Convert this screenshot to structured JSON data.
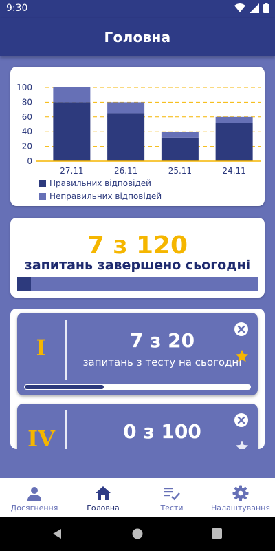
{
  "status_bar": {
    "time": "9:30"
  },
  "app_bar": {
    "title": "Головна"
  },
  "chart_data": {
    "type": "bar",
    "stacked": true,
    "categories": [
      "27.11",
      "26.11",
      "25.11",
      "24.11"
    ],
    "series": [
      {
        "name": "Правильних відповідей",
        "values": [
          80,
          65,
          32,
          52
        ],
        "color": "#2d3a7d"
      },
      {
        "name": "Неправильних відповідей",
        "values": [
          20,
          15,
          8,
          8
        ],
        "color": "#6670b6"
      }
    ],
    "y_ticks": [
      "0",
      "20",
      "40",
      "60",
      "80",
      "100"
    ],
    "ylim": [
      0,
      100
    ],
    "grid": "dashed horizontal",
    "legend_position": "bottom-left"
  },
  "today": {
    "count": "7 з 120",
    "caption": "запитань завершено сьогодні",
    "progress": 0.057
  },
  "tests": [
    {
      "level": "I",
      "count": "7 з 20",
      "caption": "запитань з тесту на сьогодні",
      "progress": 0.35
    },
    {
      "level": "IV",
      "count": "0 з 100",
      "caption": "",
      "progress": 0
    }
  ],
  "colors": {
    "primary_dark": "#2e3b86",
    "primary": "#6670b6",
    "bar_dark": "#2d3a7d",
    "accent": "#f5b600"
  },
  "bottom_nav": [
    {
      "label": "Досягнення",
      "icon": "person-icon"
    },
    {
      "label": "Головна",
      "icon": "home-icon",
      "active": true
    },
    {
      "label": "Тести",
      "icon": "checklist-icon"
    },
    {
      "label": "Налаштування",
      "icon": "gear-icon"
    }
  ]
}
